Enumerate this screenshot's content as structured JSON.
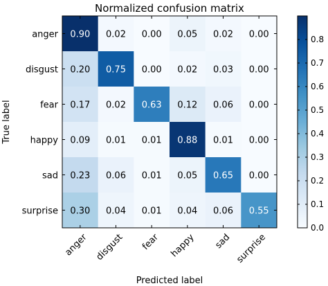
{
  "chart_data": {
    "type": "heatmap",
    "title": "Normalized confusion matrix",
    "xlabel": "Predicted label",
    "ylabel": "True label",
    "x_categories": [
      "anger",
      "disgust",
      "fear",
      "happy",
      "sad",
      "surprise"
    ],
    "y_categories": [
      "anger",
      "disgust",
      "fear",
      "happy",
      "sad",
      "surprise"
    ],
    "values": [
      [
        0.9,
        0.02,
        0.0,
        0.05,
        0.02,
        0.0
      ],
      [
        0.2,
        0.75,
        0.0,
        0.02,
        0.03,
        0.0
      ],
      [
        0.17,
        0.02,
        0.63,
        0.12,
        0.06,
        0.0
      ],
      [
        0.09,
        0.01,
        0.01,
        0.88,
        0.01,
        0.0
      ],
      [
        0.23,
        0.06,
        0.01,
        0.05,
        0.65,
        0.0
      ],
      [
        0.3,
        0.04,
        0.01,
        0.04,
        0.06,
        0.55
      ]
    ],
    "cell_labels": [
      [
        "0.90",
        "0.02",
        "0.00",
        "0.05",
        "0.02",
        "0.00"
      ],
      [
        "0.20",
        "0.75",
        "0.00",
        "0.02",
        "0.03",
        "0.00"
      ],
      [
        "0.17",
        "0.02",
        "0.63",
        "0.12",
        "0.06",
        "0.00"
      ],
      [
        "0.09",
        "0.01",
        "0.01",
        "0.88",
        "0.01",
        "0.00"
      ],
      [
        "0.23",
        "0.06",
        "0.01",
        "0.05",
        "0.65",
        "0.00"
      ],
      [
        "0.30",
        "0.04",
        "0.01",
        "0.04",
        "0.06",
        "0.55"
      ]
    ],
    "colorbar": {
      "range": [
        0.0,
        0.9
      ],
      "ticks": [
        "0.0",
        "0.1",
        "0.2",
        "0.3",
        "0.4",
        "0.5",
        "0.6",
        "0.7",
        "0.8"
      ]
    },
    "colormap": [
      "#f7fbff",
      "#deebf7",
      "#c6dbef",
      "#9ecae1",
      "#6baed6",
      "#4292c6",
      "#2171b5",
      "#08519c",
      "#08306b"
    ],
    "text_color_light": "#ffffff",
    "text_color_dark": "#000000"
  }
}
